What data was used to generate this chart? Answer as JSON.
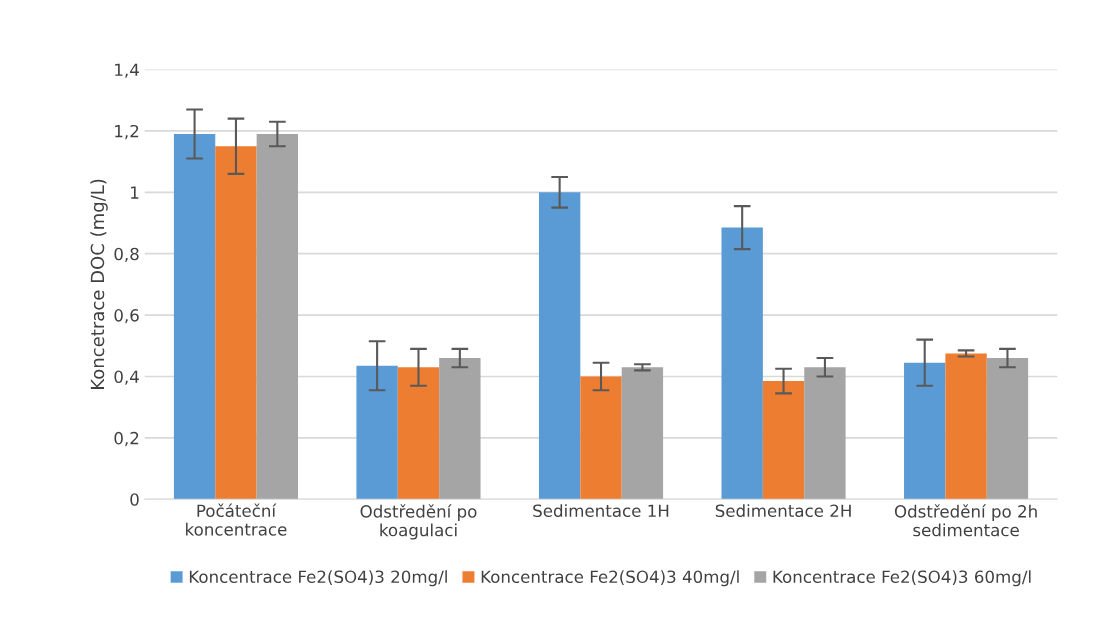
{
  "chart_data": {
    "type": "bar",
    "ylabel": "Koncetrace DOC (mg/L)",
    "categories": [
      "Počáteční\nkoncentrace",
      "Odstředění po\nkoagulaci",
      "Sedimentace 1H",
      "Sedimentace 2H",
      "Odstředění po 2h\nsedimentace"
    ],
    "series": [
      {
        "name": "Koncentrace Fe2(SO4)3 20mg/l",
        "color": "#5b9bd5",
        "values": [
          1.19,
          0.435,
          1.0,
          0.885,
          0.445
        ],
        "errors": [
          0.08,
          0.08,
          0.05,
          0.07,
          0.075
        ]
      },
      {
        "name": "Koncentrace Fe2(SO4)3 40mg/l",
        "color": "#ed7d31",
        "values": [
          1.15,
          0.43,
          0.4,
          0.385,
          0.475
        ],
        "errors": [
          0.09,
          0.06,
          0.045,
          0.04,
          0.01
        ]
      },
      {
        "name": "Koncentrace Fe2(SO4)3 60mg/l",
        "color": "#a5a5a5",
        "values": [
          1.19,
          0.46,
          0.43,
          0.43,
          0.46
        ],
        "errors": [
          0.04,
          0.03,
          0.01,
          0.03,
          0.03
        ]
      }
    ],
    "ylim": [
      0,
      1.4
    ],
    "yticks": [
      0,
      {
        "value": 0.2,
        "label": "0,2"
      },
      {
        "value": 0.4,
        "label": "0,4"
      },
      {
        "value": 0.6,
        "label": "0,6"
      },
      {
        "value": 0.8,
        "label": "0,8"
      },
      1,
      {
        "value": 1.2,
        "label": "1,2"
      },
      {
        "value": 1.4,
        "label": "1,4"
      }
    ],
    "grid": "y",
    "legend": "bottom"
  }
}
